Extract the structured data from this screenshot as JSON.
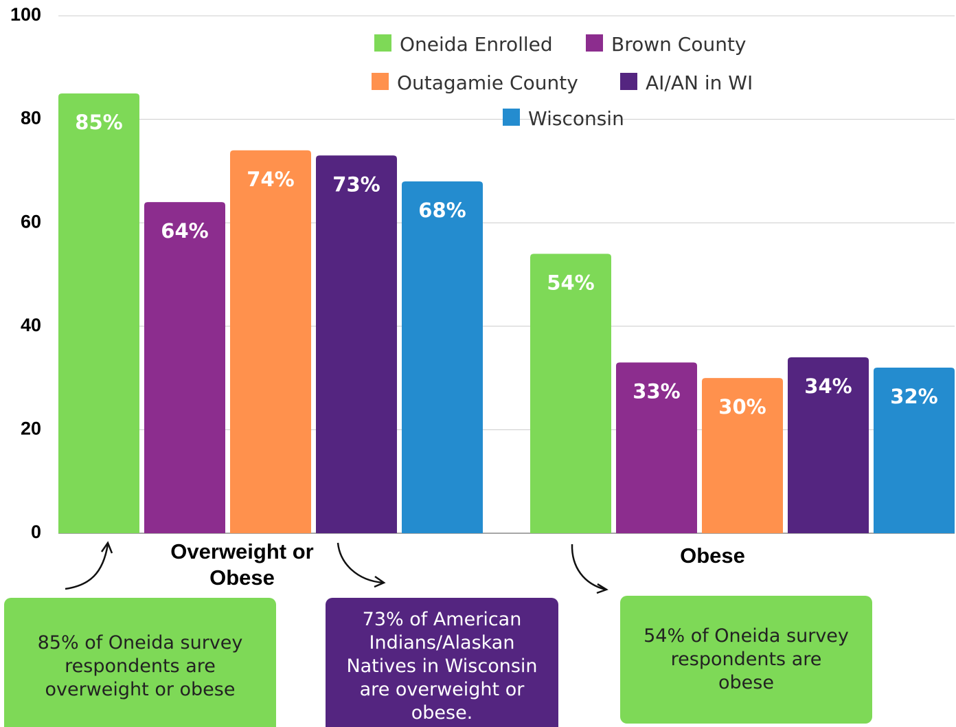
{
  "chart_data": {
    "type": "bar",
    "categories": [
      "Overweight or Obese",
      "Obese"
    ],
    "series": [
      {
        "name": "Oneida Enrolled",
        "color": "#7ed957",
        "values": [
          85,
          54
        ],
        "value_labels": [
          "85%",
          "54%"
        ]
      },
      {
        "name": "Brown County",
        "color": "#8c2d8e",
        "values": [
          64,
          33
        ],
        "value_labels": [
          "64%",
          "33%"
        ]
      },
      {
        "name": "Outagamie County",
        "color": "#ff914d",
        "values": [
          74,
          30
        ],
        "value_labels": [
          "74%",
          "30%"
        ]
      },
      {
        "name": "AI/AN in WI",
        "color": "#542580",
        "values": [
          73,
          34
        ],
        "value_labels": [
          "73%",
          "34%"
        ]
      },
      {
        "name": "Wisconsin",
        "color": "#248ccf",
        "values": [
          68,
          32
        ],
        "value_labels": [
          "68%",
          "32%"
        ]
      }
    ],
    "ylim": [
      0,
      100
    ],
    "yticks": [
      0,
      20,
      40,
      60,
      80,
      100
    ],
    "grid": true,
    "annotations": [
      {
        "text": "85% of Oneida survey respondents are overweight or obese",
        "color": "#7ed957"
      },
      {
        "text": "73% of American Indians/Alaskan Natives in Wisconsin are overweight or obese.",
        "color": "#542580"
      },
      {
        "text": "54% of Oneida survey respondents are obese",
        "color": "#7ed957"
      }
    ]
  }
}
